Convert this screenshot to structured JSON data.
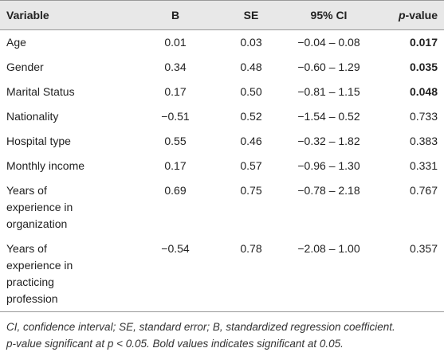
{
  "table": {
    "header": [
      "Variable",
      "B",
      "SE",
      "95% CI",
      "p-value"
    ],
    "rows": [
      {
        "cells": [
          "Age",
          "0.01",
          "0.03",
          "−0.04 – 0.08",
          "0.017"
        ],
        "bold": true
      },
      {
        "cells": [
          "Gender",
          "0.34",
          "0.48",
          "−0.60 – 1.29",
          "0.035"
        ],
        "bold": true
      },
      {
        "cells": [
          "Marital Status",
          "0.17",
          "0.50",
          "−0.81 – 1.15",
          "0.048"
        ],
        "bold": true
      },
      {
        "cells": [
          "Nationality",
          "−0.51",
          "0.52",
          "−1.54 – 0.52",
          "0.733"
        ],
        "bold": false
      },
      {
        "cells": [
          "Hospital type",
          "0.55",
          "0.46",
          "−0.32 – 1.82",
          "0.383"
        ],
        "bold": false
      },
      {
        "cells": [
          "Monthly income",
          "0.17",
          "0.57",
          "−0.96 – 1.30",
          "0.331"
        ],
        "bold": false
      },
      {
        "cells": [
          "Years of experience in organization",
          "0.69",
          "0.75",
          "−0.78 – 2.18",
          "0.767"
        ],
        "bold": false
      },
      {
        "cells": [
          "Years of experience in practicing profession",
          "−0.54",
          "0.78",
          "−2.08 – 1.00",
          "0.357"
        ],
        "bold": false
      }
    ],
    "notes": [
      "CI, confidence interval; SE, standard error; B, standardized regression coefficient.",
      "p-value significant at p < 0.05. Bold values indicates significant at 0.05."
    ]
  }
}
